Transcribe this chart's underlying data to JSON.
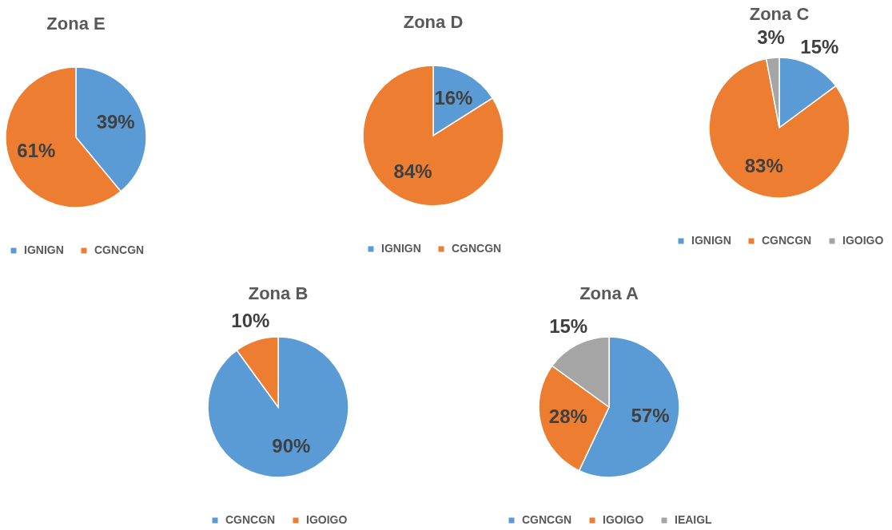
{
  "chart_data": [
    {
      "type": "pie",
      "title": "Zona E",
      "categories": [
        "IGNIGN",
        "CGNCGN"
      ],
      "values": [
        39,
        61
      ],
      "colors": [
        "#5b9bd5",
        "#ed7d31"
      ],
      "value_labels": [
        "39%",
        "61%"
      ],
      "legend": "bottom"
    },
    {
      "type": "pie",
      "title": "Zona D",
      "categories": [
        "IGNIGN",
        "CGNCGN"
      ],
      "values": [
        16,
        84
      ],
      "colors": [
        "#5b9bd5",
        "#ed7d31"
      ],
      "value_labels": [
        "16%",
        "84%"
      ],
      "legend": "bottom"
    },
    {
      "type": "pie",
      "title": "Zona C",
      "categories": [
        "IGNIGN",
        "CGNCGN",
        "IGOIGO"
      ],
      "values": [
        15,
        83,
        3
      ],
      "colors": [
        "#5b9bd5",
        "#ed7d31",
        "#a5a5a5"
      ],
      "value_labels": [
        "15%",
        "83%",
        "3%"
      ],
      "legend": "bottom"
    },
    {
      "type": "pie",
      "title": "Zona B",
      "categories": [
        "CGNCGN",
        "IGOIGO"
      ],
      "values": [
        90,
        10
      ],
      "colors": [
        "#5b9bd5",
        "#ed7d31"
      ],
      "value_labels": [
        "90%",
        "10%"
      ],
      "legend": "bottom"
    },
    {
      "type": "pie",
      "title": "Zona A",
      "categories": [
        "CGNCGN",
        "IGOIGO",
        "IEAIGL"
      ],
      "values": [
        57,
        28,
        15
      ],
      "colors": [
        "#5b9bd5",
        "#ed7d31",
        "#a5a5a5"
      ],
      "value_labels": [
        "57%",
        "28%",
        "15%"
      ],
      "legend": "bottom"
    }
  ]
}
